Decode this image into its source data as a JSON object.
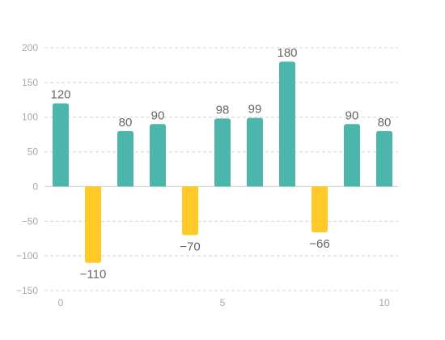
{
  "colors": {
    "positive": "#4db6ac",
    "negative": "#ffca28"
  },
  "chart_data": {
    "type": "bar",
    "x": [
      0,
      1,
      2,
      3,
      4,
      5,
      6,
      7,
      8,
      9,
      10
    ],
    "values": [
      120,
      -110,
      80,
      90,
      -70,
      98,
      99,
      180,
      -66,
      90,
      80
    ],
    "data_labels": [
      "120",
      "−110",
      "80",
      "90",
      "−70",
      "98",
      "99",
      "180",
      "−66",
      "90",
      "80"
    ],
    "yticks": [
      200,
      150,
      100,
      50,
      0,
      -50,
      -100,
      -150
    ],
    "ytick_labels": [
      "200",
      "150",
      "100",
      "50",
      "0",
      "−50",
      "−100",
      "−150"
    ],
    "xticks": [
      0,
      5,
      10
    ],
    "xtick_labels": [
      "0",
      "5",
      "10"
    ],
    "ylim": [
      -150,
      200
    ],
    "xlim": [
      -0.5,
      10.5
    ],
    "grid": true,
    "legend": "none"
  }
}
